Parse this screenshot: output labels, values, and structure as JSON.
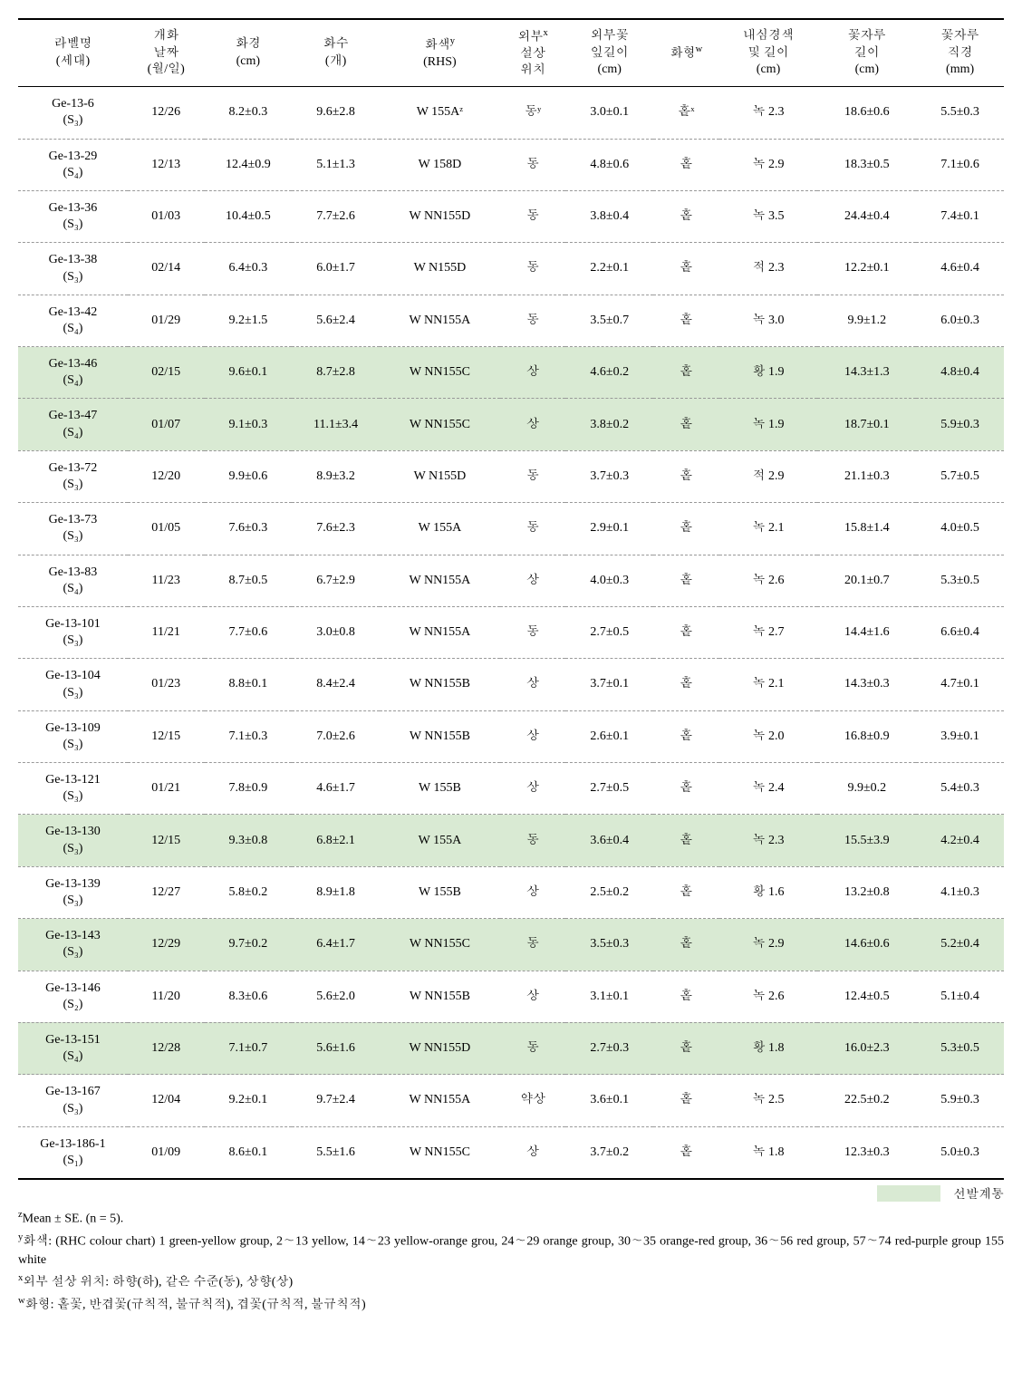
{
  "table": {
    "headers": [
      {
        "line1": "라벨명",
        "line2": "(세대)",
        "sup": ""
      },
      {
        "line1": "개화",
        "line2": "날짜",
        "line3": "(월/일)",
        "sup": ""
      },
      {
        "line1": "화경",
        "line2": "(cm)",
        "sup": ""
      },
      {
        "line1": "화수",
        "line2": "(개)",
        "sup": ""
      },
      {
        "line1": "화색",
        "line2": "(RHS)",
        "sup": "y"
      },
      {
        "line1": "외부",
        "line2": "설상",
        "line3": "위치",
        "sup": "x"
      },
      {
        "line1": "외부꽃",
        "line2": "잎길이",
        "line3": "(cm)",
        "sup": ""
      },
      {
        "line1": "화형",
        "sup": "w"
      },
      {
        "line1": "내심경색",
        "line2": "및 길이",
        "line3": "(cm)",
        "sup": ""
      },
      {
        "line1": "꽃자루",
        "line2": "길이",
        "line3": "(cm)",
        "sup": ""
      },
      {
        "line1": "꽃자루",
        "line2": "직경",
        "line3": "(mm)",
        "sup": ""
      }
    ],
    "rows": [
      {
        "hl": false,
        "label": "Ge-13-6",
        "gen": "(S₃)",
        "c": [
          "12/26",
          "8.2±0.3",
          "9.6±2.8",
          "W 155Aᶻ",
          "동ʸ",
          "3.0±0.1",
          "홑ˣ",
          "녹 2.3",
          "18.6±0.6",
          "5.5±0.3"
        ]
      },
      {
        "hl": false,
        "label": "Ge-13-29",
        "gen": "(S₄)",
        "c": [
          "12/13",
          "12.4±0.9",
          "5.1±1.3",
          "W 158D",
          "동",
          "4.8±0.6",
          "홑",
          "녹 2.9",
          "18.3±0.5",
          "7.1±0.6"
        ]
      },
      {
        "hl": false,
        "label": "Ge-13-36",
        "gen": "(S₃)",
        "c": [
          "01/03",
          "10.4±0.5",
          "7.7±2.6",
          "W NN155D",
          "동",
          "3.8±0.4",
          "홑",
          "녹 3.5",
          "24.4±0.4",
          "7.4±0.1"
        ]
      },
      {
        "hl": false,
        "label": "Ge-13-38",
        "gen": "(S₃)",
        "c": [
          "02/14",
          "6.4±0.3",
          "6.0±1.7",
          "W N155D",
          "동",
          "2.2±0.1",
          "홑",
          "적 2.3",
          "12.2±0.1",
          "4.6±0.4"
        ]
      },
      {
        "hl": false,
        "label": "Ge-13-42",
        "gen": "(S₄)",
        "c": [
          "01/29",
          "9.2±1.5",
          "5.6±2.4",
          "W NN155A",
          "동",
          "3.5±0.7",
          "홑",
          "녹 3.0",
          "9.9±1.2",
          "6.0±0.3"
        ]
      },
      {
        "hl": true,
        "label": "Ge-13-46",
        "gen": "(S₄)",
        "c": [
          "02/15",
          "9.6±0.1",
          "8.7±2.8",
          "W NN155C",
          "상",
          "4.6±0.2",
          "홑",
          "황 1.9",
          "14.3±1.3",
          "4.8±0.4"
        ]
      },
      {
        "hl": true,
        "label": "Ge-13-47",
        "gen": "(S₄)",
        "c": [
          "01/07",
          "9.1±0.3",
          "11.1±3.4",
          "W NN155C",
          "상",
          "3.8±0.2",
          "홑",
          "녹 1.9",
          "18.7±0.1",
          "5.9±0.3"
        ]
      },
      {
        "hl": false,
        "label": "Ge-13-72",
        "gen": "(S₃)",
        "c": [
          "12/20",
          "9.9±0.6",
          "8.9±3.2",
          "W N155D",
          "동",
          "3.7±0.3",
          "홑",
          "적 2.9",
          "21.1±0.3",
          "5.7±0.5"
        ]
      },
      {
        "hl": false,
        "label": "Ge-13-73",
        "gen": "(S₃)",
        "c": [
          "01/05",
          "7.6±0.3",
          "7.6±2.3",
          "W 155A",
          "동",
          "2.9±0.1",
          "홑",
          "녹 2.1",
          "15.8±1.4",
          "4.0±0.5"
        ]
      },
      {
        "hl": false,
        "label": "Ge-13-83",
        "gen": "(S₄)",
        "c": [
          "11/23",
          "8.7±0.5",
          "6.7±2.9",
          "W NN155A",
          "상",
          "4.0±0.3",
          "홑",
          "녹 2.6",
          "20.1±0.7",
          "5.3±0.5"
        ]
      },
      {
        "hl": false,
        "label": "Ge-13-101",
        "gen": "(S₃)",
        "c": [
          "11/21",
          "7.7±0.6",
          "3.0±0.8",
          "W NN155A",
          "동",
          "2.7±0.5",
          "홑",
          "녹 2.7",
          "14.4±1.6",
          "6.6±0.4"
        ]
      },
      {
        "hl": false,
        "label": "Ge-13-104",
        "gen": "(S₃)",
        "c": [
          "01/23",
          "8.8±0.1",
          "8.4±2.4",
          "W NN155B",
          "상",
          "3.7±0.1",
          "홑",
          "녹 2.1",
          "14.3±0.3",
          "4.7±0.1"
        ]
      },
      {
        "hl": false,
        "label": "Ge-13-109",
        "gen": "(S₃)",
        "c": [
          "12/15",
          "7.1±0.3",
          "7.0±2.6",
          "W NN155B",
          "상",
          "2.6±0.1",
          "홑",
          "녹 2.0",
          "16.8±0.9",
          "3.9±0.1"
        ]
      },
      {
        "hl": false,
        "label": "Ge-13-121",
        "gen": "(S₃)",
        "c": [
          "01/21",
          "7.8±0.9",
          "4.6±1.7",
          "W 155B",
          "상",
          "2.7±0.5",
          "홑",
          "녹 2.4",
          "9.9±0.2",
          "5.4±0.3"
        ]
      },
      {
        "hl": true,
        "label": "Ge-13-130",
        "gen": "(S₃)",
        "c": [
          "12/15",
          "9.3±0.8",
          "6.8±2.1",
          "W 155A",
          "동",
          "3.6±0.4",
          "홑",
          "녹 2.3",
          "15.5±3.9",
          "4.2±0.4"
        ]
      },
      {
        "hl": false,
        "label": "Ge-13-139",
        "gen": "(S₃)",
        "c": [
          "12/27",
          "5.8±0.2",
          "8.9±1.8",
          "W 155B",
          "상",
          "2.5±0.2",
          "홑",
          "황 1.6",
          "13.2±0.8",
          "4.1±0.3"
        ]
      },
      {
        "hl": true,
        "label": "Ge-13-143",
        "gen": "(S₃)",
        "c": [
          "12/29",
          "9.7±0.2",
          "6.4±1.7",
          "W NN155C",
          "동",
          "3.5±0.3",
          "홑",
          "녹 2.9",
          "14.6±0.6",
          "5.2±0.4"
        ]
      },
      {
        "hl": false,
        "label": "Ge-13-146",
        "gen": "(S₂)",
        "c": [
          "11/20",
          "8.3±0.6",
          "5.6±2.0",
          "W NN155B",
          "상",
          "3.1±0.1",
          "홑",
          "녹 2.6",
          "12.4±0.5",
          "5.1±0.4"
        ]
      },
      {
        "hl": true,
        "label": "Ge-13-151",
        "gen": "(S₄)",
        "c": [
          "12/28",
          "7.1±0.7",
          "5.6±1.6",
          "W NN155D",
          "동",
          "2.7±0.3",
          "홑",
          "황 1.8",
          "16.0±2.3",
          "5.3±0.5"
        ]
      },
      {
        "hl": false,
        "label": "Ge-13-167",
        "gen": "(S₃)",
        "c": [
          "12/04",
          "9.2±0.1",
          "9.7±2.4",
          "W NN155A",
          "약상",
          "3.6±0.1",
          "홑",
          "녹 2.5",
          "22.5±0.2",
          "5.9±0.3"
        ]
      },
      {
        "hl": false,
        "label": "Ge-13-186-1",
        "gen": "(S₁)",
        "c": [
          "01/09",
          "8.6±0.1",
          "5.5±1.6",
          "W NN155C",
          "상",
          "3.7±0.2",
          "홑",
          "녹 1.8",
          "12.3±0.3",
          "5.0±0.3"
        ]
      }
    ]
  },
  "legend": {
    "label": "선발계통"
  },
  "footnotes": {
    "z": "Mean ± SE. (n = 5).",
    "y": "화색: (RHC colour chart) 1 green-yellow group, 2∼13 yellow, 14∼23 yellow-orange grou, 24∼29 orange group, 30∼35 orange-red group, 36∼56 red group, 57∼74 red-purple group 155 white",
    "x": "외부 설상 위치: 하향(하), 같은 수준(동), 상향(상)",
    "w": "화형: 홑꽃, 반겹꽃(규칙적, 불규칙적), 겹꽃(규칙적, 불규칙적)"
  },
  "colors": {
    "highlight": "#d9ead3",
    "border": "#000000",
    "dashed": "#999999",
    "background": "#ffffff"
  }
}
